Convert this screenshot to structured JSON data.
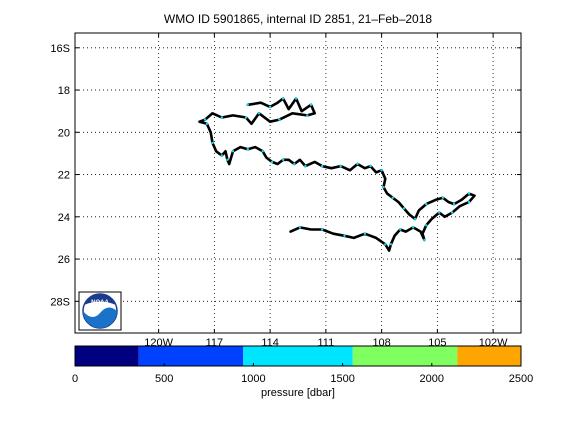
{
  "chart_data": {
    "type": "map-trajectory",
    "title": "WMO ID 5901865, internal ID 2851, 21–Feb–2018",
    "logo_text": "NOAA",
    "map": {
      "lon_range": [
        -124.5,
        -100.5
      ],
      "lat_range": [
        -29.5,
        -15.3
      ],
      "grid": true,
      "x_ticks": [
        {
          "value": -120,
          "label": "120W"
        },
        {
          "value": -117,
          "label": "117"
        },
        {
          "value": -114,
          "label": "114"
        },
        {
          "value": -111,
          "label": "111"
        },
        {
          "value": -108,
          "label": "108"
        },
        {
          "value": -105,
          "label": "105"
        },
        {
          "value": -102,
          "label": "102W"
        }
      ],
      "y_ticks": [
        {
          "value": -16,
          "label": "16S"
        },
        {
          "value": -18,
          "label": "18"
        },
        {
          "value": -20,
          "label": "20"
        },
        {
          "value": -22,
          "label": "22"
        },
        {
          "value": -24,
          "label": "24"
        },
        {
          "value": -26,
          "label": "26"
        },
        {
          "value": -28,
          "label": "28S"
        }
      ]
    },
    "trajectory": {
      "line_color": "#000000",
      "marker_color": "#00e5ff",
      "lonlat": [
        [
          -115.2,
          -18.7
        ],
        [
          -114.5,
          -18.6
        ],
        [
          -114.0,
          -18.8
        ],
        [
          -113.6,
          -18.6
        ],
        [
          -113.3,
          -18.4
        ],
        [
          -113.0,
          -18.9
        ],
        [
          -112.6,
          -18.4
        ],
        [
          -112.3,
          -19.0
        ],
        [
          -111.8,
          -18.7
        ],
        [
          -111.6,
          -19.1
        ],
        [
          -112.0,
          -19.2
        ],
        [
          -112.8,
          -19.1
        ],
        [
          -113.5,
          -19.4
        ],
        [
          -114.0,
          -19.5
        ],
        [
          -114.6,
          -19.1
        ],
        [
          -115.0,
          -19.6
        ],
        [
          -115.3,
          -19.3
        ],
        [
          -116.0,
          -19.2
        ],
        [
          -116.6,
          -19.3
        ],
        [
          -117.1,
          -19.1
        ],
        [
          -117.5,
          -19.4
        ],
        [
          -117.8,
          -19.5
        ],
        [
          -117.4,
          -19.6
        ],
        [
          -117.2,
          -20.0
        ],
        [
          -117.1,
          -20.5
        ],
        [
          -116.9,
          -20.9
        ],
        [
          -116.6,
          -21.1
        ],
        [
          -116.4,
          -20.9
        ],
        [
          -116.3,
          -21.3
        ],
        [
          -116.2,
          -21.5
        ],
        [
          -116.0,
          -20.9
        ],
        [
          -115.6,
          -20.7
        ],
        [
          -115.2,
          -20.8
        ],
        [
          -114.8,
          -20.7
        ],
        [
          -114.4,
          -20.9
        ],
        [
          -114.2,
          -21.2
        ],
        [
          -113.9,
          -21.4
        ],
        [
          -113.6,
          -21.5
        ],
        [
          -113.3,
          -21.3
        ],
        [
          -113.0,
          -21.3
        ],
        [
          -112.7,
          -21.5
        ],
        [
          -112.4,
          -21.3
        ],
        [
          -112.1,
          -21.6
        ],
        [
          -111.6,
          -21.4
        ],
        [
          -111.2,
          -21.6
        ],
        [
          -110.7,
          -21.7
        ],
        [
          -110.2,
          -21.6
        ],
        [
          -109.7,
          -21.8
        ],
        [
          -109.3,
          -21.5
        ],
        [
          -108.9,
          -21.7
        ],
        [
          -108.6,
          -21.6
        ],
        [
          -108.3,
          -21.9
        ],
        [
          -108.0,
          -21.8
        ],
        [
          -107.8,
          -22.2
        ],
        [
          -107.9,
          -22.6
        ],
        [
          -107.7,
          -22.9
        ],
        [
          -107.4,
          -23.1
        ],
        [
          -107.1,
          -23.3
        ],
        [
          -106.8,
          -23.6
        ],
        [
          -106.5,
          -23.9
        ],
        [
          -106.2,
          -24.1
        ],
        [
          -106.0,
          -23.7
        ],
        [
          -105.6,
          -23.4
        ],
        [
          -105.1,
          -23.2
        ],
        [
          -104.7,
          -23.1
        ],
        [
          -104.4,
          -23.3
        ],
        [
          -104.1,
          -23.4
        ],
        [
          -103.7,
          -23.2
        ],
        [
          -103.3,
          -22.9
        ],
        [
          -103.0,
          -23.0
        ],
        [
          -103.3,
          -23.3
        ],
        [
          -103.8,
          -23.5
        ],
        [
          -104.2,
          -23.8
        ],
        [
          -104.6,
          -24.0
        ],
        [
          -104.9,
          -23.8
        ],
        [
          -105.3,
          -24.1
        ],
        [
          -105.6,
          -24.4
        ],
        [
          -105.8,
          -24.8
        ],
        [
          -105.7,
          -25.1
        ],
        [
          -105.9,
          -24.7
        ],
        [
          -106.3,
          -24.5
        ],
        [
          -106.7,
          -24.7
        ],
        [
          -107.0,
          -24.6
        ],
        [
          -107.3,
          -24.9
        ],
        [
          -107.5,
          -25.3
        ],
        [
          -107.6,
          -25.6
        ],
        [
          -107.8,
          -25.3
        ],
        [
          -108.3,
          -25.0
        ],
        [
          -108.9,
          -24.8
        ],
        [
          -109.5,
          -25.0
        ],
        [
          -110.0,
          -24.9
        ],
        [
          -110.6,
          -24.8
        ],
        [
          -111.2,
          -24.6
        ],
        [
          -111.8,
          -24.6
        ],
        [
          -112.4,
          -24.5
        ],
        [
          -112.9,
          -24.7
        ]
      ]
    },
    "colorbar": {
      "label": "pressure [dbar]",
      "ticks": [
        0,
        500,
        1000,
        1500,
        2000,
        2500
      ],
      "range": [
        0,
        2500
      ],
      "segments": [
        {
          "from": 0,
          "to": 357,
          "color": "#000080"
        },
        {
          "from": 357,
          "to": 943,
          "color": "#0040ff"
        },
        {
          "from": 943,
          "to": 1557,
          "color": "#00e5ff"
        },
        {
          "from": 1557,
          "to": 2143,
          "color": "#80ff60"
        },
        {
          "from": 2143,
          "to": 2500,
          "color": "#ffa500"
        }
      ]
    }
  }
}
